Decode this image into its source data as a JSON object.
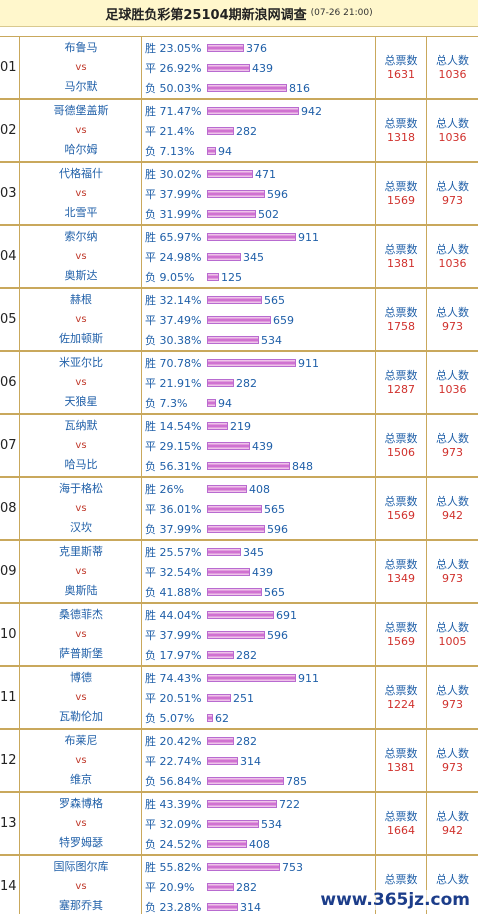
{
  "title": "足球胜负彩第25104期新浪网调查",
  "subtitle": "(07-26 21:00)",
  "vs_label": "vs",
  "labels": {
    "win": "胜",
    "draw": "平",
    "lose": "负",
    "total_votes": "总票数",
    "total_people": "总人数"
  },
  "watermark": "www.365jz.com",
  "matches": [
    {
      "idx": "01",
      "home": "布鲁马",
      "away": "马尔默",
      "win_pct": "23.05%",
      "win_n": 376,
      "draw_pct": "26.92%",
      "draw_n": 439,
      "lose_pct": "50.03%",
      "lose_n": 816,
      "votes": "1631",
      "people": "1036"
    },
    {
      "idx": "02",
      "home": "哥德堡盖斯",
      "away": "哈尔姆",
      "win_pct": "71.47%",
      "win_n": 942,
      "draw_pct": "21.4%",
      "draw_n": 282,
      "lose_pct": "7.13%",
      "lose_n": 94,
      "votes": "1318",
      "people": "1036"
    },
    {
      "idx": "03",
      "home": "代格福什",
      "away": "北雪平",
      "win_pct": "30.02%",
      "win_n": 471,
      "draw_pct": "37.99%",
      "draw_n": 596,
      "lose_pct": "31.99%",
      "lose_n": 502,
      "votes": "1569",
      "people": "973"
    },
    {
      "idx": "04",
      "home": "索尔纳",
      "away": "奥斯达",
      "win_pct": "65.97%",
      "win_n": 911,
      "draw_pct": "24.98%",
      "draw_n": 345,
      "lose_pct": "9.05%",
      "lose_n": 125,
      "votes": "1381",
      "people": "1036"
    },
    {
      "idx": "05",
      "home": "赫根",
      "away": "佐加顿斯",
      "win_pct": "32.14%",
      "win_n": 565,
      "draw_pct": "37.49%",
      "draw_n": 659,
      "lose_pct": "30.38%",
      "lose_n": 534,
      "votes": "1758",
      "people": "973"
    },
    {
      "idx": "06",
      "home": "米亚尔比",
      "away": "天狼星",
      "win_pct": "70.78%",
      "win_n": 911,
      "draw_pct": "21.91%",
      "draw_n": 282,
      "lose_pct": "7.3%",
      "lose_n": 94,
      "votes": "1287",
      "people": "1036"
    },
    {
      "idx": "07",
      "home": "瓦纳默",
      "away": "哈马比",
      "win_pct": "14.54%",
      "win_n": 219,
      "draw_pct": "29.15%",
      "draw_n": 439,
      "lose_pct": "56.31%",
      "lose_n": 848,
      "votes": "1506",
      "people": "973"
    },
    {
      "idx": "08",
      "home": "海于格松",
      "away": "汉坎",
      "win_pct": "26%",
      "win_n": 408,
      "draw_pct": "36.01%",
      "draw_n": 565,
      "lose_pct": "37.99%",
      "lose_n": 596,
      "votes": "1569",
      "people": "942"
    },
    {
      "idx": "09",
      "home": "克里斯蒂",
      "away": "奥斯陆",
      "win_pct": "25.57%",
      "win_n": 345,
      "draw_pct": "32.54%",
      "draw_n": 439,
      "lose_pct": "41.88%",
      "lose_n": 565,
      "votes": "1349",
      "people": "973"
    },
    {
      "idx": "10",
      "home": "桑德菲杰",
      "away": "萨普斯堡",
      "win_pct": "44.04%",
      "win_n": 691,
      "draw_pct": "37.99%",
      "draw_n": 596,
      "lose_pct": "17.97%",
      "lose_n": 282,
      "votes": "1569",
      "people": "1005"
    },
    {
      "idx": "11",
      "home": "博德",
      "away": "瓦勒伦加",
      "win_pct": "74.43%",
      "win_n": 911,
      "draw_pct": "20.51%",
      "draw_n": 251,
      "lose_pct": "5.07%",
      "lose_n": 62,
      "votes": "1224",
      "people": "973"
    },
    {
      "idx": "12",
      "home": "布莱尼",
      "away": "维京",
      "win_pct": "20.42%",
      "win_n": 282,
      "draw_pct": "22.74%",
      "draw_n": 314,
      "lose_pct": "56.84%",
      "lose_n": 785,
      "votes": "1381",
      "people": "973"
    },
    {
      "idx": "13",
      "home": "罗森博格",
      "away": "特罗姆瑟",
      "win_pct": "43.39%",
      "win_n": 722,
      "draw_pct": "32.09%",
      "draw_n": 534,
      "lose_pct": "24.52%",
      "lose_n": 408,
      "votes": "1664",
      "people": "942"
    },
    {
      "idx": "14",
      "home": "国际图尔库",
      "away": "塞那乔其",
      "win_pct": "55.82%",
      "win_n": 753,
      "draw_pct": "20.9%",
      "draw_n": 282,
      "lose_pct": "23.28%",
      "lose_n": 314,
      "votes": "",
      "people": ""
    }
  ]
}
